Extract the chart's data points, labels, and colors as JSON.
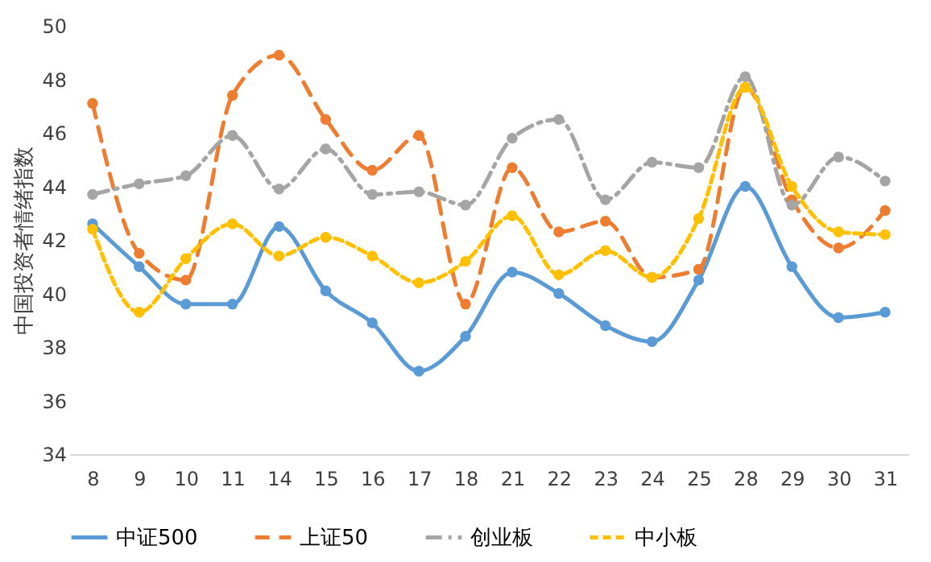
{
  "chart_data": {
    "type": "line",
    "ylabel": "中国投资者情绪指数",
    "categories": [
      "8",
      "9",
      "10",
      "11",
      "14",
      "15",
      "16",
      "17",
      "18",
      "21",
      "22",
      "23",
      "24",
      "25",
      "28",
      "29",
      "30",
      "31"
    ],
    "series": [
      {
        "name": "中证500",
        "color": "#5b9bd5",
        "line_style": "solid",
        "values": [
          42.6,
          41.0,
          39.6,
          39.6,
          42.5,
          40.1,
          38.9,
          37.1,
          38.4,
          40.8,
          40.0,
          38.8,
          38.2,
          40.5,
          44.0,
          41.0,
          39.1,
          39.3
        ]
      },
      {
        "name": "上证50",
        "color": "#ed7d31",
        "line_style": "dashed",
        "values": [
          47.1,
          41.5,
          40.5,
          47.4,
          48.9,
          46.5,
          44.6,
          45.9,
          39.6,
          44.7,
          42.3,
          42.7,
          40.6,
          40.9,
          47.7,
          43.5,
          41.7,
          43.1
        ]
      },
      {
        "name": "创业板",
        "color": "#a5a5a5",
        "line_style": "dashed",
        "values": [
          43.7,
          44.1,
          44.4,
          45.9,
          43.9,
          45.4,
          43.7,
          43.8,
          43.3,
          45.8,
          46.5,
          43.5,
          44.9,
          44.7,
          48.1,
          43.3,
          45.1,
          44.2
        ]
      },
      {
        "name": "中小板",
        "color": "#ffc000",
        "line_style": "dashed",
        "values": [
          42.4,
          39.3,
          41.3,
          42.6,
          41.4,
          42.1,
          41.4,
          40.4,
          41.2,
          42.9,
          40.7,
          41.6,
          40.6,
          42.8,
          47.7,
          44.0,
          42.3,
          42.2
        ]
      }
    ],
    "ylim": [
      34,
      50
    ],
    "yticks": [
      34,
      36,
      38,
      40,
      42,
      44,
      46,
      48,
      50
    ],
    "grid": false,
    "legend": "bottom",
    "marker": "circle"
  }
}
